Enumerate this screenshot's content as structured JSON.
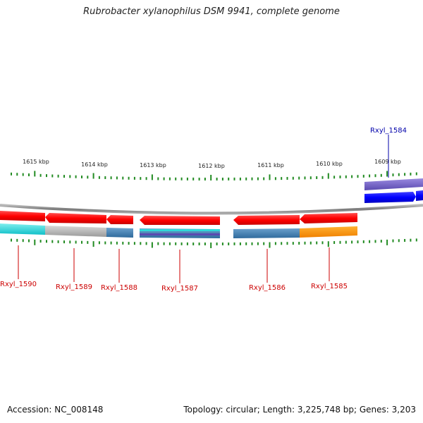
{
  "title": "Rubrobacter xylanophilus DSM 9941, complete genome",
  "footer": {
    "accession": "Accession: NC_008148",
    "topology": "Topology: circular; Length: 3,225,748 bp; Genes: 3,203"
  },
  "ruler": {
    "labels": [
      "1615 kbp",
      "1614 kbp",
      "1613 kbp",
      "1612 kbp",
      "1611 kbp",
      "1610 kbp",
      "1609 kbp"
    ]
  },
  "genes": [
    {
      "name": "Rxyl_1590",
      "color": "#cc0000"
    },
    {
      "name": "Rxyl_1589",
      "color": "#cc0000"
    },
    {
      "name": "Rxyl_1588",
      "color": "#cc0000"
    },
    {
      "name": "Rxyl_1587",
      "color": "#cc0000"
    },
    {
      "name": "Rxyl_1586",
      "color": "#cc0000"
    },
    {
      "name": "Rxyl_1585",
      "color": "#cc0000"
    },
    {
      "name": "Rxyl_1584",
      "color": "#0000aa"
    }
  ],
  "colors": {
    "reverse_strand": "#ff0000",
    "forward_strand": "#0000ff",
    "backbone": "#888888",
    "ticks": "#228b22"
  }
}
